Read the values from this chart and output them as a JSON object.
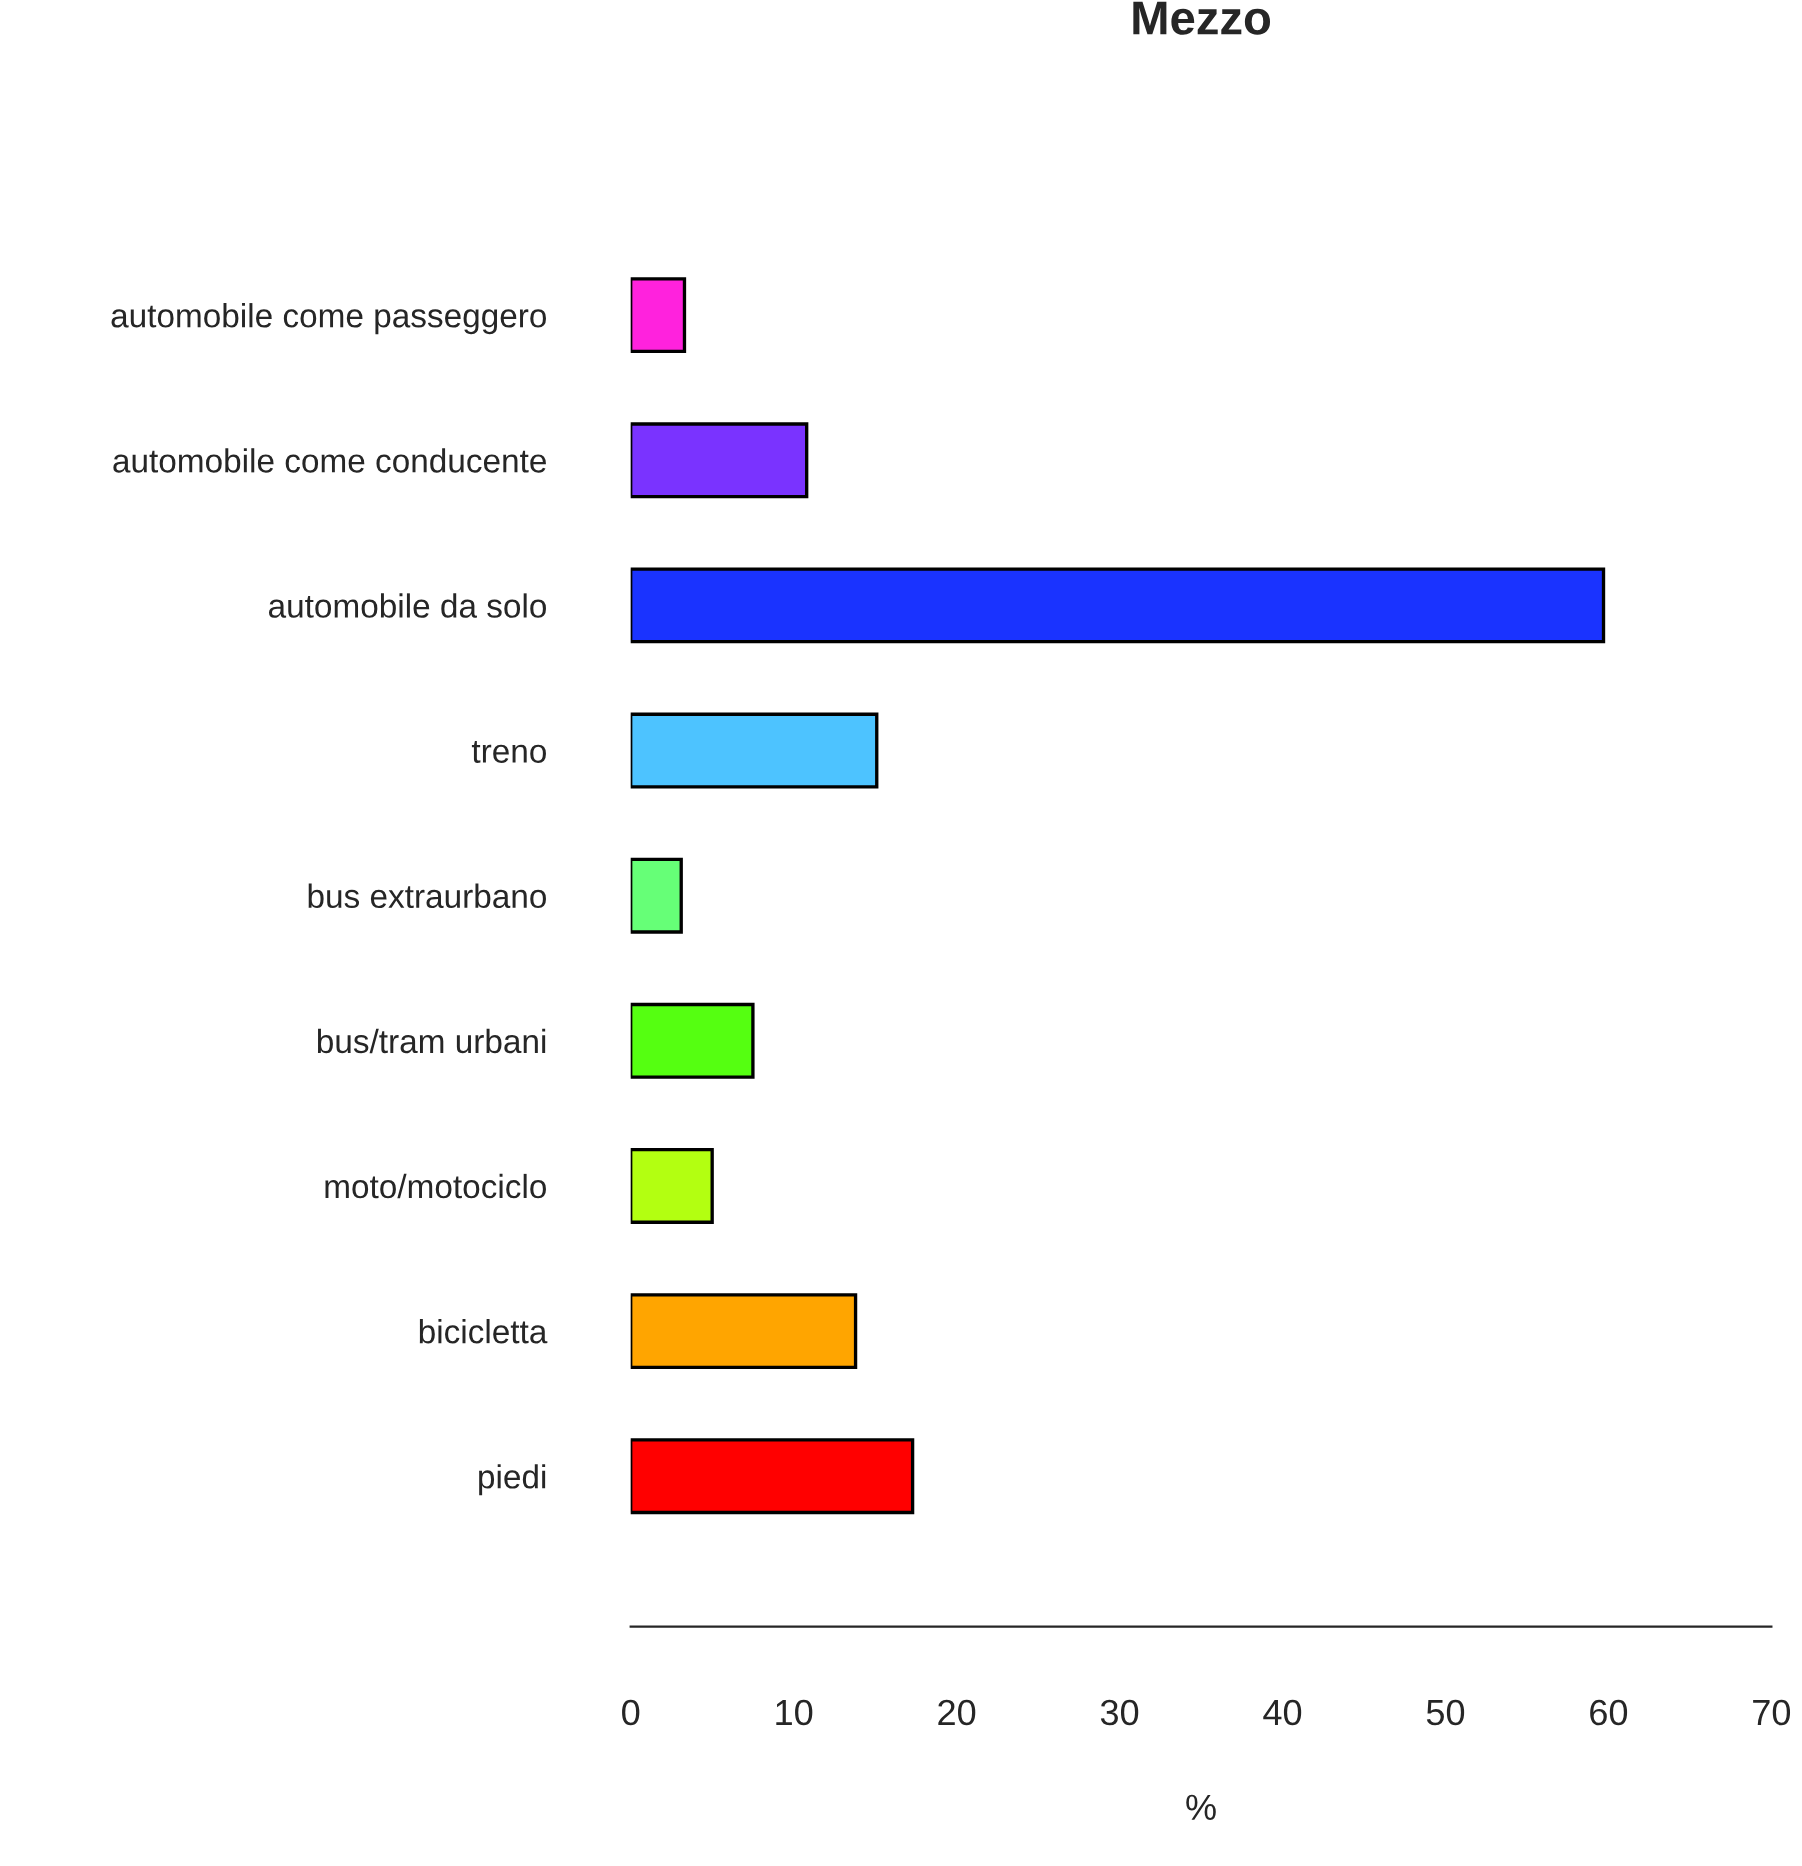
{
  "chart_data": {
    "type": "bar",
    "orientation": "horizontal",
    "title": "Mezzo",
    "xlabel": "%",
    "categories": [
      "automobile come passeggero",
      "automobile come conducente",
      "automobile da solo",
      "treno",
      "bus extraurbano",
      "bus/tram urbani",
      "moto/motociclo",
      "bicicletta",
      "piedi"
    ],
    "values": [
      3.3,
      10.8,
      59.7,
      15.1,
      3.1,
      7.5,
      5.0,
      13.8,
      17.3
    ],
    "colors": [
      "#ff22dd",
      "#7a33ff",
      "#1a33ff",
      "#4dc3ff",
      "#66ff77",
      "#55ff11",
      "#b3ff11",
      "#ffa500",
      "#ff0000"
    ],
    "xlim": [
      0,
      70
    ],
    "xticks": [
      0,
      10,
      20,
      30,
      40,
      50,
      60,
      70
    ],
    "grid": false,
    "legend": false
  }
}
